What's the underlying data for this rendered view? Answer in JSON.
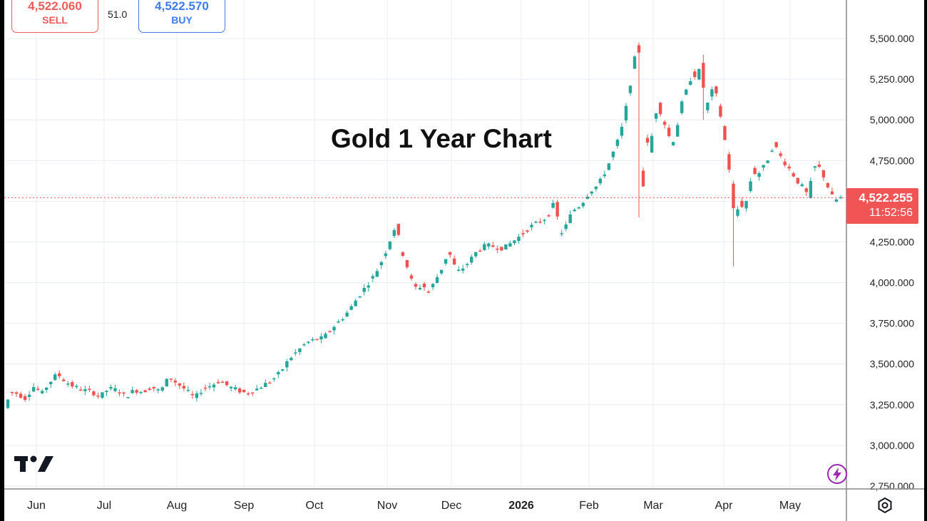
{
  "trade_panel": {
    "sell_price": "4,522.060",
    "sell_label": "SELL",
    "spread": "51.0",
    "buy_price": "4,522.570",
    "buy_label": "BUY"
  },
  "last_price": {
    "price": "4,522.255",
    "countdown": "11:52:56"
  },
  "icons": [
    "tradingview-logo",
    "lightning-icon",
    "settings-icon"
  ],
  "colors": {
    "up": "#26a69a",
    "down": "#ef5350",
    "grid": "#e8edf2",
    "price_line": "#f05454"
  },
  "chart_data": {
    "type": "candlestick",
    "title": "Gold 1 Year Chart",
    "ylim": [
      2700,
      5780
    ],
    "yticks": [
      2750,
      3000,
      3250,
      3500,
      3750,
      4000,
      4250,
      4500,
      4750,
      5000,
      5250,
      5500
    ],
    "ytick_labels": [
      "2,750.000",
      "3,000.000",
      "3,250.000",
      "3,500.000",
      "3,750.000",
      "4,000.000",
      "4,250.000",
      "4,500.000",
      "4,750.000",
      "5,000.000",
      "5,250.000",
      "5,500.000"
    ],
    "xticks": [
      "Jun",
      "Jul",
      "Aug",
      "Sep",
      "Oct",
      "Nov",
      "Dec",
      "2026",
      "Feb",
      "Mar",
      "Apr",
      "May"
    ],
    "xtick_bold": "2026",
    "last_value": 4522.255,
    "grid": true,
    "close_points": [
      [
        0,
        3230
      ],
      [
        2,
        3330
      ],
      [
        5,
        3320
      ],
      [
        9,
        3290
      ],
      [
        13,
        3360
      ],
      [
        17,
        3320
      ],
      [
        20,
        3380
      ],
      [
        24,
        3440
      ],
      [
        28,
        3390
      ],
      [
        32,
        3360
      ],
      [
        36,
        3340
      ],
      [
        40,
        3330
      ],
      [
        44,
        3300
      ],
      [
        48,
        3350
      ],
      [
        52,
        3340
      ],
      [
        56,
        3300
      ],
      [
        60,
        3340
      ],
      [
        64,
        3330
      ],
      [
        68,
        3360
      ],
      [
        72,
        3330
      ],
      [
        76,
        3420
      ],
      [
        80,
        3380
      ],
      [
        84,
        3340
      ],
      [
        88,
        3290
      ],
      [
        92,
        3350
      ],
      [
        96,
        3370
      ],
      [
        100,
        3400
      ],
      [
        104,
        3360
      ],
      [
        108,
        3340
      ],
      [
        112,
        3320
      ],
      [
        116,
        3340
      ],
      [
        120,
        3370
      ],
      [
        124,
        3400
      ],
      [
        128,
        3450
      ],
      [
        132,
        3530
      ],
      [
        136,
        3580
      ],
      [
        140,
        3630
      ],
      [
        144,
        3650
      ],
      [
        148,
        3660
      ],
      [
        152,
        3720
      ],
      [
        156,
        3770
      ],
      [
        160,
        3830
      ],
      [
        164,
        3910
      ],
      [
        168,
        3980
      ],
      [
        172,
        4050
      ],
      [
        175,
        4130
      ],
      [
        178,
        4220
      ],
      [
        180,
        4300
      ],
      [
        182,
        4360
      ],
      [
        184,
        4200
      ],
      [
        186,
        4150
      ],
      [
        188,
        4050
      ],
      [
        190,
        3980
      ],
      [
        192,
        3960
      ],
      [
        194,
        3990
      ],
      [
        197,
        3940
      ],
      [
        200,
        4010
      ],
      [
        204,
        4110
      ],
      [
        206,
        4190
      ],
      [
        208,
        4150
      ],
      [
        210,
        4060
      ],
      [
        212,
        4080
      ],
      [
        214,
        4100
      ],
      [
        217,
        4150
      ],
      [
        220,
        4200
      ],
      [
        224,
        4230
      ],
      [
        228,
        4220
      ],
      [
        232,
        4210
      ],
      [
        236,
        4250
      ],
      [
        240,
        4290
      ],
      [
        244,
        4340
      ],
      [
        248,
        4370
      ],
      [
        252,
        4400
      ],
      [
        256,
        4500
      ],
      [
        258,
        4300
      ],
      [
        260,
        4320
      ],
      [
        262,
        4380
      ],
      [
        264,
        4440
      ],
      [
        268,
        4480
      ],
      [
        272,
        4560
      ],
      [
        276,
        4600
      ],
      [
        280,
        4700
      ],
      [
        283,
        4800
      ],
      [
        286,
        4900
      ],
      [
        288,
        5000
      ],
      [
        290,
        5150
      ],
      [
        292,
        5300
      ],
      [
        294,
        5450
      ],
      [
        295,
        5420
      ],
      [
        296,
        4700
      ],
      [
        297,
        4600
      ],
      [
        298,
        4900
      ],
      [
        300,
        4800
      ],
      [
        302,
        5000
      ],
      [
        304,
        5100
      ],
      [
        306,
        5000
      ],
      [
        308,
        4950
      ],
      [
        310,
        4850
      ],
      [
        312,
        4900
      ],
      [
        314,
        5050
      ],
      [
        316,
        5150
      ],
      [
        318,
        5200
      ],
      [
        320,
        5300
      ],
      [
        322,
        5250
      ],
      [
        324,
        5350
      ],
      [
        325,
        5200
      ],
      [
        326,
        5050
      ],
      [
        328,
        5150
      ],
      [
        330,
        5200
      ],
      [
        332,
        5100
      ],
      [
        334,
        4950
      ],
      [
        336,
        4800
      ],
      [
        338,
        4600
      ],
      [
        339,
        4450
      ],
      [
        340,
        4400
      ],
      [
        342,
        4500
      ],
      [
        344,
        4450
      ],
      [
        346,
        4550
      ],
      [
        348,
        4700
      ],
      [
        350,
        4650
      ],
      [
        352,
        4700
      ],
      [
        354,
        4720
      ],
      [
        356,
        4800
      ],
      [
        358,
        4850
      ],
      [
        360,
        4800
      ],
      [
        362,
        4750
      ],
      [
        364,
        4720
      ],
      [
        366,
        4680
      ],
      [
        368,
        4640
      ],
      [
        370,
        4600
      ],
      [
        372,
        4580
      ],
      [
        374,
        4520
      ],
      [
        376,
        4700
      ],
      [
        378,
        4720
      ],
      [
        380,
        4690
      ],
      [
        382,
        4620
      ],
      [
        384,
        4560
      ],
      [
        386,
        4500
      ],
      [
        388,
        4520
      ]
    ],
    "wick_extremes": [
      {
        "x": 295,
        "high": 5460,
        "low": 4400
      },
      {
        "x": 325,
        "high": 5400,
        "low": 5000
      },
      {
        "x": 339,
        "high": 4500,
        "low": 4100
      }
    ]
  }
}
